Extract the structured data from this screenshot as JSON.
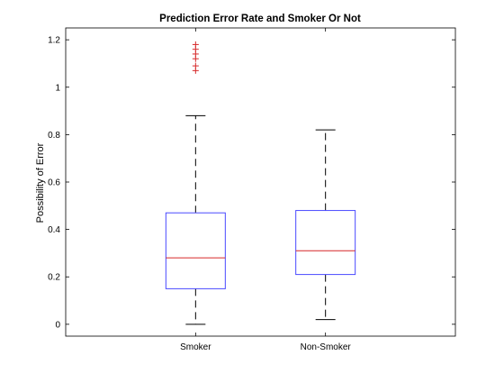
{
  "chart_data": {
    "type": "box",
    "title": "Prediction Error Rate and Smoker Or Not",
    "xlabel": "",
    "ylabel": "Possibility of Error",
    "ylim": [
      -0.05,
      1.25
    ],
    "yticks": [
      0,
      0.2,
      0.4,
      0.6,
      0.8,
      1,
      1.2
    ],
    "ytick_labels": [
      "0",
      "0.2",
      "0.4",
      "0.6",
      "0.8",
      "1",
      "1.2"
    ],
    "categories": [
      "Smoker",
      "Non-Smoker"
    ],
    "grid": false,
    "series": [
      {
        "category": "Smoker",
        "whisker_low": 0.0,
        "q1": 0.15,
        "median": 0.28,
        "q3": 0.47,
        "whisker_high": 0.88,
        "outliers": [
          1.07,
          1.09,
          1.12,
          1.14,
          1.16,
          1.18
        ]
      },
      {
        "category": "Non-Smoker",
        "whisker_low": 0.02,
        "q1": 0.21,
        "median": 0.31,
        "q3": 0.48,
        "whisker_high": 0.82,
        "outliers": []
      }
    ],
    "colors": {
      "box": "#4a4aff",
      "median": "#d62728",
      "whisker": "#000000",
      "outlier": "#d62728",
      "axes": "#000000"
    }
  }
}
